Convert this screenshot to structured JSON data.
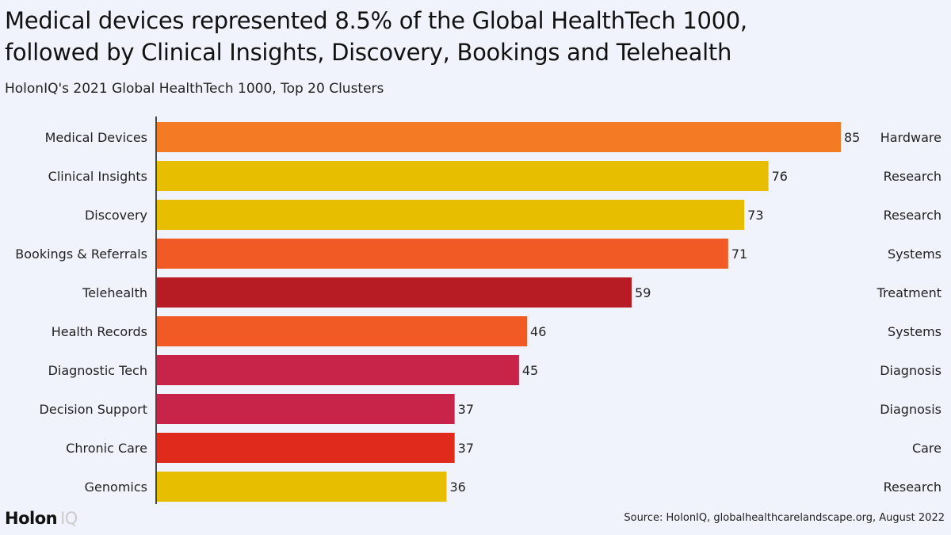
{
  "title_line1": "Medical devices represented 8.5% of the Global HealthTech 1000,",
  "title_line2": "followed by Clinical Insights, Discovery, Bookings and Telehealth",
  "subtitle": "HolonIQ's 2021 Global HealthTech 1000, Top 20 Clusters",
  "source": "Source: HolonIQ, globalhealthcarelandscape.org, August 2022",
  "logo": {
    "word": "Holon",
    "suffix": "IQ"
  },
  "colors": {
    "Hardware": "#f47a24",
    "Research": "#e8be00",
    "Systems": "#f15a24",
    "Treatment": "#b71c24",
    "Diagnosis": "#c8244a",
    "Care": "#e02b1c"
  },
  "chart_data": {
    "type": "bar",
    "orientation": "horizontal",
    "categories": [
      "Medical Devices",
      "Clinical Insights",
      "Discovery",
      "Bookings & Referrals",
      "Telehealth",
      "Health Records",
      "Diagnostic Tech",
      "Decision Support",
      "Chronic Care",
      "Genomics"
    ],
    "values": [
      85,
      76,
      73,
      71,
      59,
      46,
      45,
      37,
      37,
      36
    ],
    "groups": [
      "Hardware",
      "Research",
      "Research",
      "Systems",
      "Treatment",
      "Systems",
      "Diagnosis",
      "Diagnosis",
      "Care",
      "Research"
    ],
    "xlim": [
      0,
      85
    ],
    "grid": false,
    "data_labels": true
  }
}
